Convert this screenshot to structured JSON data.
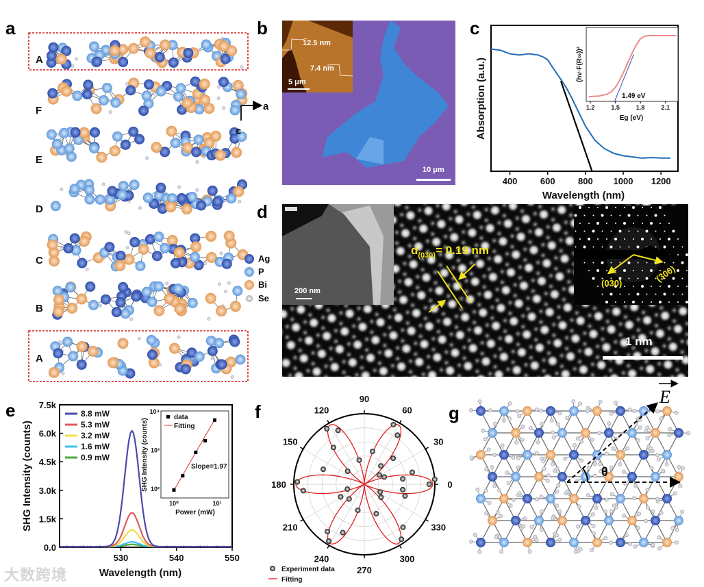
{
  "panel_labels": {
    "a": "a",
    "b": "b",
    "c": "c",
    "d": "d",
    "e": "e",
    "f": "f",
    "g": "g"
  },
  "panel_a": {
    "layers": [
      "A",
      "F",
      "E",
      "D",
      "C",
      "B",
      "A"
    ],
    "highlighted_layer": "A",
    "axes": {
      "horizontal": "a",
      "vertical": "c"
    },
    "legend": [
      {
        "element": "Ag",
        "color": "#3a5cbc"
      },
      {
        "element": "P",
        "color": "#7fb2ea"
      },
      {
        "element": "Bi",
        "color": "#f0b57e"
      },
      {
        "element": "Se",
        "color": "#dedee8"
      }
    ]
  },
  "panel_b": {
    "afm_steps": [
      "12.5 nm",
      "7.4 nm"
    ],
    "inset_scale_bar": "5 μm",
    "scale_bar": "10 μm",
    "substrate_color": "#7a5cb4",
    "flake_color": "#3f86d6"
  },
  "panel_d": {
    "spacing_symbol": "d",
    "spacing_plane": "(030)",
    "spacing_value": "= 0.19 nm",
    "inset_scale_bar": "200 nm",
    "saed_labels": [
      "(030)",
      "(300)"
    ],
    "scale_bar": "1 nm",
    "annotation_color": "#f2e21a"
  },
  "panel_g": {
    "field_label": "E",
    "angle_label": "θ"
  },
  "watermark": "大数跨境",
  "chart_data": [
    {
      "id": "c-main",
      "type": "line",
      "xlabel": "Wavelength (nm)",
      "ylabel": "Absorption (a.u.)",
      "xlim": [
        300,
        1290
      ],
      "ylim": [
        0,
        1
      ],
      "xticks": [
        400,
        600,
        800,
        1000,
        1200
      ],
      "series": [
        {
          "color": "#1f6db5",
          "x": [
            300,
            350,
            400,
            450,
            500,
            550,
            580,
            600,
            620,
            650,
            680,
            700,
            730,
            760,
            800,
            850,
            900,
            950,
            1000,
            1050,
            1100,
            1150,
            1200,
            1250
          ],
          "y": [
            0.95,
            0.94,
            0.91,
            0.9,
            0.91,
            0.9,
            0.88,
            0.86,
            0.81,
            0.74,
            0.67,
            0.62,
            0.53,
            0.43,
            0.3,
            0.18,
            0.11,
            0.07,
            0.05,
            0.04,
            0.03,
            0.035,
            0.03,
            0.03
          ]
        }
      ],
      "tangent": {
        "color": "#000000",
        "x": [
          670,
          835
        ],
        "y": [
          0.68,
          0
        ]
      },
      "grid": false
    },
    {
      "id": "c-inset",
      "type": "line",
      "xlabel": "Eg (eV)",
      "ylabel": "(hv·F(R∞))²",
      "xlim": [
        1.15,
        2.25
      ],
      "ylim": [
        0,
        1
      ],
      "xticks": [
        1.2,
        1.5,
        1.8,
        2.1
      ],
      "series": [
        {
          "color": "#ee8a8a",
          "x": [
            1.18,
            1.3,
            1.4,
            1.45,
            1.5,
            1.55,
            1.6,
            1.65,
            1.7,
            1.75,
            1.8,
            1.85,
            1.9,
            2.0,
            2.1,
            2.23
          ],
          "y": [
            0.02,
            0.03,
            0.06,
            0.1,
            0.17,
            0.28,
            0.42,
            0.57,
            0.72,
            0.85,
            0.95,
            0.99,
            1,
            1,
            1,
            1
          ]
        }
      ],
      "fit_line": {
        "color": "#3a4fb0",
        "x": [
          1.49,
          1.72
        ],
        "y": [
          0,
          0.7
        ]
      },
      "annotation": "1.49 eV",
      "grid": false
    },
    {
      "id": "e-main",
      "type": "line",
      "xlabel": "Wavelength (nm)",
      "ylabel": "SHG Intensity (counts)",
      "xlim": [
        519,
        550
      ],
      "ylim": [
        0,
        7500
      ],
      "xticks": [
        530,
        540,
        550
      ],
      "yticks": [
        "0.0",
        "1.5k",
        "3.0k",
        "4.5k",
        "6.0k",
        "7.5k"
      ],
      "ytick_values": [
        0,
        1500,
        3000,
        4500,
        6000,
        7500
      ],
      "legend_position": "top-left",
      "peak_center": 532,
      "series": [
        {
          "name": "8.8 mW",
          "color": "#4a4aa8",
          "peak": 6100
        },
        {
          "name": "5.3 mW",
          "color": "#e05a5a",
          "peak": 1780
        },
        {
          "name": "3.2 mW",
          "color": "#f0e040",
          "peak": 880
        },
        {
          "name": "1.6 mW",
          "color": "#3fc0ee",
          "peak": 250
        },
        {
          "name": "0.9 mW",
          "color": "#4caa3a",
          "peak": 120
        }
      ],
      "grid": false
    },
    {
      "id": "e-inset",
      "type": "scatter",
      "xlabel": "Power (mW)",
      "ylabel": "SHG Intensity (counts)",
      "xscale": "log",
      "yscale": "log",
      "xlim": [
        0.5,
        18.6
      ],
      "ylim": [
        56,
        10000
      ],
      "xticks": [
        "10⁰",
        "10¹"
      ],
      "xtick_values": [
        1,
        10
      ],
      "yticks": [
        "10²",
        "10³",
        "10⁴"
      ],
      "ytick_values": [
        100,
        1000,
        10000
      ],
      "legend": [
        "data",
        "Fitting"
      ],
      "legend_position": "top-left",
      "series": [
        {
          "name": "data",
          "color": "#000000",
          "x": [
            1.0,
            1.6,
            3.2,
            5.3,
            8.8
          ],
          "y": [
            90,
            210,
            850,
            1700,
            5800
          ]
        }
      ],
      "fit": {
        "name": "Fitting",
        "color": "#e03030",
        "x": [
          1.0,
          8.8
        ],
        "y": [
          88,
          6000
        ]
      },
      "annotation": "Slope=1.97"
    },
    {
      "id": "f-polar",
      "type": "scatter",
      "projection": "polar",
      "angle_ticks": [
        0,
        30,
        60,
        90,
        120,
        150,
        180,
        210,
        240,
        270,
        300,
        330
      ],
      "legend": [
        "Experiment data",
        "Fitting"
      ],
      "legend_position": "bottom-left",
      "fit": {
        "name": "Fitting",
        "color": "#e02020",
        "form": "cos^2(3θ)"
      },
      "series": [
        {
          "name": "Experiment data",
          "color": "#111111",
          "theta": [
            0,
            4,
            8,
            14,
            20,
            32,
            42,
            48,
            56,
            64,
            76,
            102,
            116,
            124,
            130,
            142,
            160,
            178,
            186,
            196,
            208,
            224,
            232,
            238,
            246,
            256,
            292,
            304,
            312,
            322,
            334,
            344,
            352
          ],
          "r": [
            0.92,
            1.0,
            0.55,
            0.7,
            0.3,
            0.25,
            0.55,
            0.35,
            0.84,
            0.94,
            0.48,
            0.35,
            0.85,
            0.95,
            0.68,
            0.3,
            0.62,
            0.95,
            0.87,
            0.25,
            0.38,
            0.3,
            0.85,
            0.95,
            0.75,
            0.38,
            0.45,
            0.94,
            0.82,
            0.3,
            0.25,
            0.6,
            0.55
          ]
        }
      ]
    }
  ]
}
